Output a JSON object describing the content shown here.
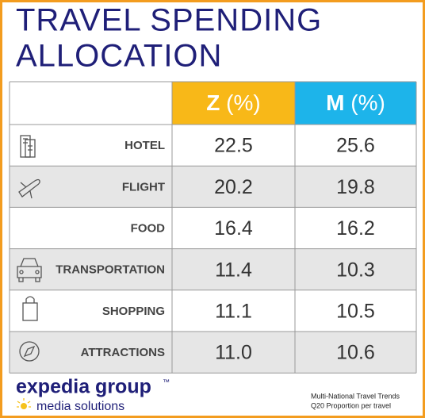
{
  "header": {
    "title_lines": [
      "TRAVEL SPENDING",
      "ALLOCATION"
    ]
  },
  "table": {
    "columns": [
      {
        "name": "Z",
        "unit": "(%)"
      },
      {
        "name": "M",
        "unit": "(%)"
      }
    ],
    "rows": [
      [
        "HOTEL",
        "22.5",
        "25.6"
      ],
      [
        "FLIGHT",
        "20.2",
        "19.8"
      ],
      [
        "FOOD",
        "16.4",
        "16.2"
      ],
      [
        "TRANSPORTATION",
        "11.4",
        "10.3"
      ],
      [
        "SHOPPING",
        "11.1",
        "10.5"
      ],
      [
        "ATTRACTIONS",
        "11.0",
        "10.6"
      ]
    ]
  },
  "footer": {
    "brand": "expedia group",
    "trademark": "™",
    "tagline": "media solutions",
    "source_lines": [
      "Multi-National Travel Trends",
      "Q20 Proportion per travel"
    ]
  }
}
